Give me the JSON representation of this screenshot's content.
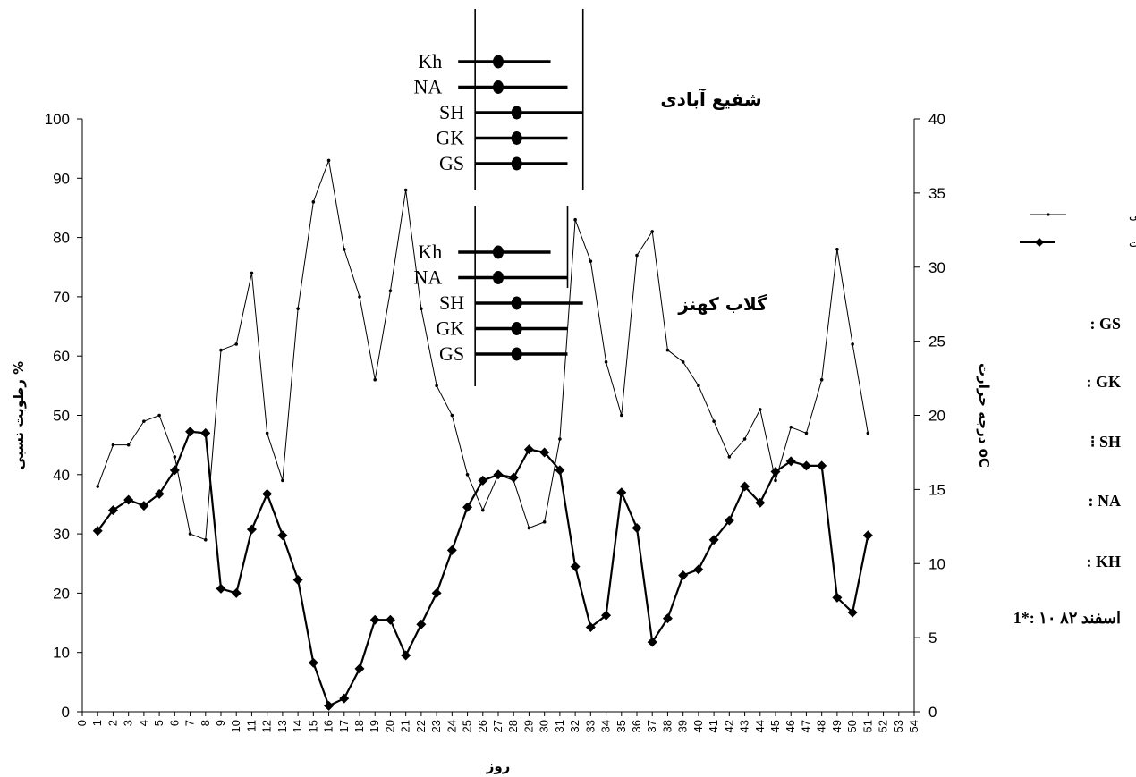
{
  "chart_data": {
    "type": "line",
    "xlabel": "روز",
    "ylabel_left": "رطوبت نسبی %",
    "ylabel_right": "درجه حرارت oC",
    "x_ticks": [
      "0",
      "1",
      "2",
      "3",
      "4",
      "5",
      "6",
      "7",
      "8",
      "9",
      "10",
      "11",
      "12",
      "13",
      "14",
      "15",
      "16",
      "17",
      "18",
      "19",
      "20",
      "21",
      "22",
      "23",
      "24",
      "25",
      "26",
      "27",
      "28",
      "29",
      "30",
      "31",
      "32",
      "33",
      "34",
      "35",
      "36",
      "37",
      "38",
      "39",
      "40",
      "41",
      "42",
      "43",
      "44",
      "45",
      "46",
      "47",
      "48",
      "49",
      "50",
      "51",
      "52",
      "53",
      "54"
    ],
    "xlim": [
      0,
      54
    ],
    "ylim_left": [
      0,
      100
    ],
    "yticks_left": [
      "0",
      "10",
      "20",
      "30",
      "40",
      "50",
      "60",
      "70",
      "80",
      "90",
      "100"
    ],
    "ylim_right": [
      0,
      40
    ],
    "yticks_right": [
      "0",
      "5",
      "10",
      "15",
      "20",
      "25",
      "30",
      "35",
      "40"
    ],
    "grid": false,
    "legend_position": "right",
    "series": [
      {
        "name": "رطوبت نسبی",
        "axis": "left",
        "marker": "small-dot",
        "x": [
          1,
          2,
          3,
          4,
          5,
          6,
          7,
          8,
          9,
          10,
          11,
          12,
          13,
          14,
          15,
          16,
          17,
          18,
          19,
          20,
          21,
          22,
          23,
          24,
          25,
          26,
          27,
          28,
          29,
          30,
          31,
          32,
          33,
          34,
          35,
          36,
          37,
          38,
          39,
          40,
          41,
          42,
          43,
          44,
          45,
          46,
          47,
          48,
          49,
          50,
          51
        ],
        "values": [
          38,
          45,
          45,
          49,
          50,
          43,
          30,
          29,
          61,
          62,
          74,
          47,
          39,
          68,
          86,
          93,
          78,
          70,
          56,
          71,
          88,
          68,
          55,
          50,
          40,
          34,
          40,
          39,
          31,
          32,
          46,
          83,
          76,
          59,
          50,
          77,
          81,
          61,
          59,
          55,
          49,
          43,
          46,
          51,
          39,
          48,
          47,
          56,
          78,
          62,
          47
        ]
      },
      {
        "name": "درجه حرارت",
        "axis": "right",
        "marker": "diamond",
        "x": [
          1,
          2,
          3,
          4,
          5,
          6,
          7,
          8,
          9,
          10,
          11,
          12,
          13,
          14,
          15,
          16,
          17,
          18,
          19,
          20,
          21,
          22,
          23,
          24,
          25,
          26,
          27,
          28,
          29,
          30,
          31,
          32,
          33,
          34,
          35,
          36,
          37,
          38,
          39,
          40,
          41,
          42,
          43,
          44,
          45,
          46,
          47,
          48,
          49,
          50,
          51
        ],
        "values": [
          12.2,
          13.6,
          14.3,
          13.9,
          14.7,
          16.3,
          18.9,
          18.8,
          8.3,
          8,
          12.3,
          14.7,
          11.9,
          8.9,
          3.3,
          0.4,
          0.9,
          2.9,
          6.2,
          6.2,
          3.8,
          5.9,
          8,
          10.9,
          13.8,
          15.6,
          16,
          15.8,
          17.7,
          17.5,
          16.3,
          9.8,
          5.7,
          6.5,
          14.8,
          12.4,
          4.7,
          6.3,
          9.2,
          9.6,
          11.6,
          12.9,
          15.2,
          14.1,
          16.2,
          16.9,
          16.6,
          16.6,
          7.7,
          6.7,
          11.9
        ]
      }
    ],
    "annotations": [
      {
        "title": "شفیع آبادی",
        "rows": [
          {
            "label": "Kh",
            "low": 24.4,
            "mid": 27,
            "high": 30.4
          },
          {
            "label": "NA",
            "low": 24.4,
            "mid": 27,
            "high": 31.5
          },
          {
            "label": "SH",
            "low": 25.5,
            "mid": 28.2,
            "high": 32.5
          },
          {
            "label": "GK",
            "low": 25.5,
            "mid": 28.2,
            "high": 31.5
          },
          {
            "label": "GS",
            "low": 25.5,
            "mid": 28.2,
            "high": 31.5
          }
        ],
        "vline_left_x": 25.5,
        "vline_right_x": 32.5
      },
      {
        "title": "گلاب کهنز",
        "rows": [
          {
            "label": "Kh",
            "low": 24.4,
            "mid": 27,
            "high": 30.4
          },
          {
            "label": "NA",
            "low": 24.4,
            "mid": 27,
            "high": 31.5
          },
          {
            "label": "SH",
            "low": 25.5,
            "mid": 28.2,
            "high": 32.5
          },
          {
            "label": "GK",
            "low": 25.5,
            "mid": 28.2,
            "high": 31.5
          },
          {
            "label": "GS",
            "low": 25.5,
            "mid": 28.2,
            "high": 31.5
          }
        ],
        "vline_left_x": 25.5,
        "vline_right_x": 31.5
      }
    ]
  },
  "side_notes": [
    ": GS",
    ": GK",
    "⁝ SH",
    ": NA",
    ": KH",
    "1*: ۱۰ اسفند ۸۲"
  ]
}
